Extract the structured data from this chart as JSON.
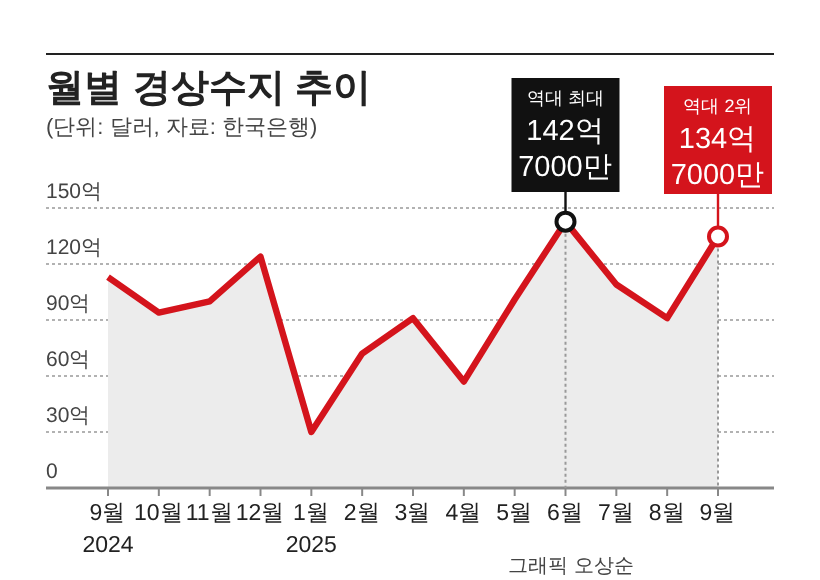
{
  "chart_data": {
    "type": "area",
    "title": "월별 경상수지 추이",
    "subtitle": "(단위: 달러, 자료: 한국은행)",
    "categories": [
      "9월\n2024",
      "10월",
      "11월",
      "12월",
      "1월\n2025",
      "2월",
      "3월",
      "4월",
      "5월",
      "6월",
      "7월",
      "8월",
      "9월"
    ],
    "series": [
      {
        "color": "#d4141c",
        "values": [
          113,
          94,
          100,
          124,
          30,
          72,
          91,
          57,
          101,
          142.7,
          109,
          91,
          134.7
        ]
      }
    ],
    "ylim": [
      0,
      150
    ],
    "yticks": [
      {
        "value": 0,
        "label": "0"
      },
      {
        "value": 30,
        "label": "30억"
      },
      {
        "value": 60,
        "label": "60억"
      },
      {
        "value": 90,
        "label": "90억"
      },
      {
        "value": 120,
        "label": "120억"
      },
      {
        "value": 150,
        "label": "150억"
      }
    ],
    "grid": "y",
    "marker": "none",
    "line_style": "solid",
    "ref_lines": [
      {
        "axis": "x",
        "value": "6월",
        "line_style": "dotted",
        "color": "#999999"
      },
      {
        "axis": "x",
        "value": "9월",
        "line_style": "dotted",
        "color": "#999999"
      }
    ],
    "annotations": [
      {
        "text": "역대 최대\n142억\n7000만",
        "x": "6월",
        "y": 142.7
      },
      {
        "text": "역대 2위\n134억\n7000만",
        "x": "9월",
        "y": 134.7
      },
      "그래픽 오상순"
    ]
  }
}
